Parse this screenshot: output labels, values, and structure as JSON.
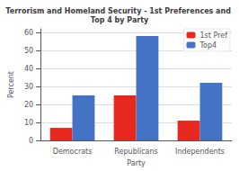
{
  "chart_data": {
    "type": "bar",
    "title": "Terrorism and Homeland Security - 1st Preferences and Top 4 by Party",
    "categories": [
      "Democrats",
      "Republicans",
      "Independents"
    ],
    "series": [
      {
        "name": "1st Pref",
        "color": "#e8281e",
        "values": [
          7,
          25,
          11
        ]
      },
      {
        "name": "Top4",
        "color": "#4472c4",
        "values": [
          25,
          58,
          32
        ]
      }
    ],
    "xlabel": "Party",
    "ylabel": "Percent",
    "ylim": [
      0,
      62
    ],
    "yticks": [
      0,
      10,
      20,
      30,
      40,
      50,
      60
    ],
    "grid": true,
    "legend": "upper right"
  }
}
